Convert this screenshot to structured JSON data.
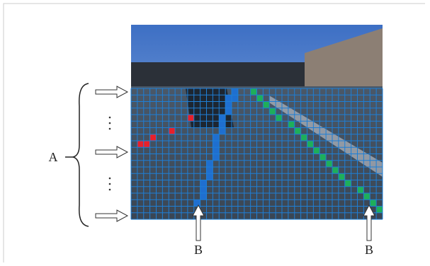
{
  "labels": {
    "a": "A",
    "b": [
      "B",
      "B"
    ]
  }
}
